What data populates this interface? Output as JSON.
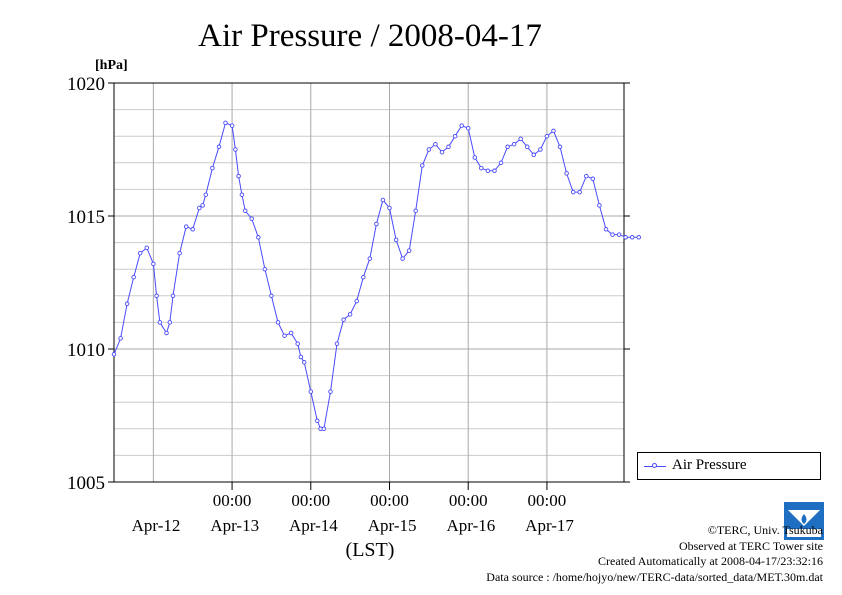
{
  "chart_data": {
    "type": "line",
    "title": "Air Pressure / 2008-04-17",
    "ylabel": "[hPa]",
    "xlabel": "(LST)",
    "ylim": [
      1005,
      1020
    ],
    "yticks": [
      "1005",
      "1010",
      "1015",
      "1020"
    ],
    "xlim": [
      "2008-04-11 12:00",
      "2008-04-17 23:30"
    ],
    "time_ticks": [
      "00:00",
      "00:00",
      "00:00",
      "00:00",
      "00:00"
    ],
    "date_labels": [
      "Apr-12",
      "Apr-13",
      "Apr-14",
      "Apr-15",
      "Apr-16",
      "Apr-17"
    ],
    "grid": true,
    "legend_position": "right",
    "series": [
      {
        "name": "Air Pressure",
        "color": "#4a4aff",
        "x_hours_from_start": [
          0,
          2,
          4,
          6,
          8,
          10,
          12,
          13,
          14,
          16,
          17,
          18,
          20,
          22,
          24,
          26,
          27,
          28,
          30,
          32,
          34,
          36,
          37,
          38,
          39,
          40,
          42,
          44,
          46,
          48,
          50,
          52,
          54,
          56,
          57,
          58,
          60,
          62,
          63,
          64,
          66,
          68,
          70,
          72,
          74,
          76,
          78,
          80,
          82,
          84,
          86,
          88,
          90,
          92,
          94,
          96,
          98,
          100,
          102,
          104,
          106,
          108,
          110,
          112,
          114,
          116,
          118,
          120,
          122,
          124,
          126,
          128,
          130,
          132,
          134,
          136,
          138,
          140,
          142,
          144,
          146,
          148,
          150,
          152,
          154,
          156,
          158,
          160
        ],
        "values": [
          1009.8,
          1010.4,
          1011.7,
          1012.7,
          1013.6,
          1013.8,
          1013.2,
          1012.0,
          1011.0,
          1010.6,
          1011.0,
          1012.0,
          1013.6,
          1014.6,
          1014.5,
          1015.3,
          1015.4,
          1015.8,
          1016.8,
          1017.6,
          1018.5,
          1018.4,
          1017.5,
          1016.5,
          1015.8,
          1015.2,
          1014.9,
          1014.2,
          1013.0,
          1012.0,
          1011.0,
          1010.5,
          1010.6,
          1010.2,
          1009.7,
          1009.5,
          1008.4,
          1007.3,
          1007.0,
          1007.0,
          1008.4,
          1010.2,
          1011.1,
          1011.3,
          1011.8,
          1012.7,
          1013.4,
          1014.7,
          1015.6,
          1015.3,
          1014.1,
          1013.4,
          1013.7,
          1015.2,
          1016.9,
          1017.5,
          1017.7,
          1017.4,
          1017.6,
          1018.0,
          1018.4,
          1018.3,
          1017.2,
          1016.8,
          1016.7,
          1016.7,
          1017.0,
          1017.6,
          1017.7,
          1017.9,
          1017.6,
          1017.3,
          1017.5,
          1018.0,
          1018.2,
          1017.6,
          1016.6,
          1015.9,
          1015.9,
          1016.5,
          1016.4,
          1015.4,
          1014.5,
          1014.3,
          1014.3,
          1014.2,
          1014.2,
          1014.2
        ]
      }
    ]
  },
  "legend": {
    "label": "Air Pressure"
  },
  "credits": {
    "copyright": "©TERC, Univ. Tsukuba",
    "observed": "Observed at TERC Tower site",
    "created": "Created Automatically at 2008-04-17/23:32:16",
    "source": "Data source : /home/hojyo/new/TERC-data/sorted_data/MET.30m.dat"
  },
  "logo": {
    "text": "TERC",
    "color": "#1e6fc2"
  }
}
